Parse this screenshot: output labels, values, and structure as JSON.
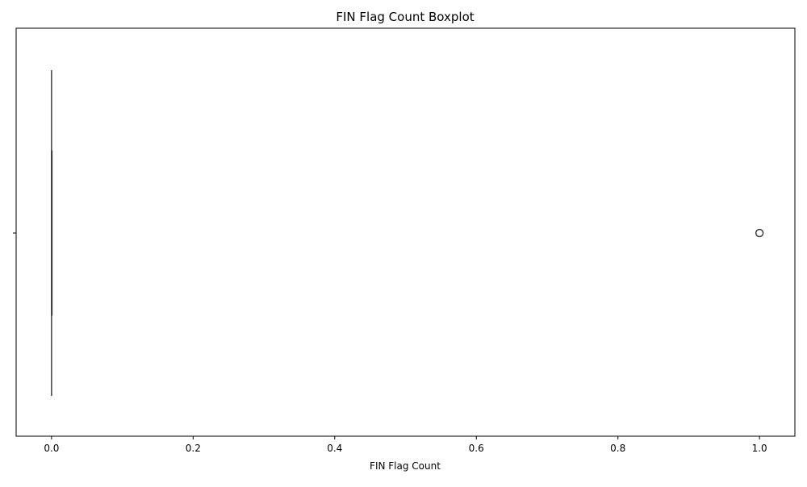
{
  "chart_data": {
    "type": "boxplot",
    "orientation": "horizontal",
    "title": "FIN Flag Count Boxplot",
    "xlabel": "FIN Flag Count",
    "ylabel": "",
    "xlim": [
      -0.05,
      1.05
    ],
    "x_ticks": [
      0.0,
      0.2,
      0.4,
      0.6,
      0.8,
      1.0
    ],
    "x_tick_labels": [
      "0.0",
      "0.2",
      "0.4",
      "0.6",
      "0.8",
      "1.0"
    ],
    "grid": false,
    "box": {
      "min": 0.0,
      "q1": 0.0,
      "median": 0.0,
      "q3": 0.0,
      "max": 0.0,
      "outliers": [
        1.0
      ]
    },
    "colors": {
      "box_edge": "#3f3f3f",
      "outlier_edge": "#3f3f3f",
      "axes": "#000000"
    }
  }
}
